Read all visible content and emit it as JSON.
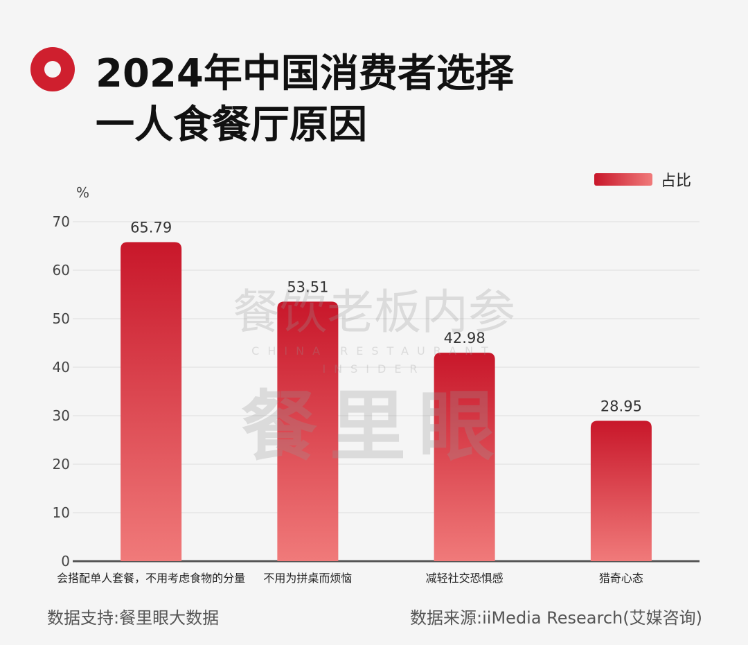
{
  "title": {
    "line1": "2024年中国消费者选择",
    "line2": "一人食餐厅原因"
  },
  "watermark": {
    "top": "餐饮老板内参",
    "sub": "CHINA RESTAURANT INSIDER",
    "big": "餐里眼"
  },
  "footer": {
    "left": "数据支持:餐里眼大数据",
    "right": "数据来源:iiMedia Research(艾媒咨询)"
  },
  "colors": {
    "bar_top": "#c8172a",
    "bar_bottom": "#f07a7a",
    "axis": "#555555",
    "grid": "#dddddd"
  },
  "chart_data": {
    "type": "bar",
    "title": "2024年中国消费者选择一人食餐厅原因",
    "unit_label": "%",
    "categories": [
      "会搭配单人套餐，不用考虑食物的分量",
      "不用为拼桌而烦恼",
      "减轻社交恐惧感",
      "猎奇心态"
    ],
    "series": [
      {
        "name": "占比",
        "values": [
          65.79,
          53.51,
          42.98,
          28.95
        ]
      }
    ],
    "ylim": [
      0,
      70
    ],
    "yticks": [
      0,
      10,
      20,
      30,
      40,
      50,
      60,
      70
    ],
    "grid": true,
    "legend_position": "top-right",
    "xlabel": "",
    "ylabel": "%"
  }
}
